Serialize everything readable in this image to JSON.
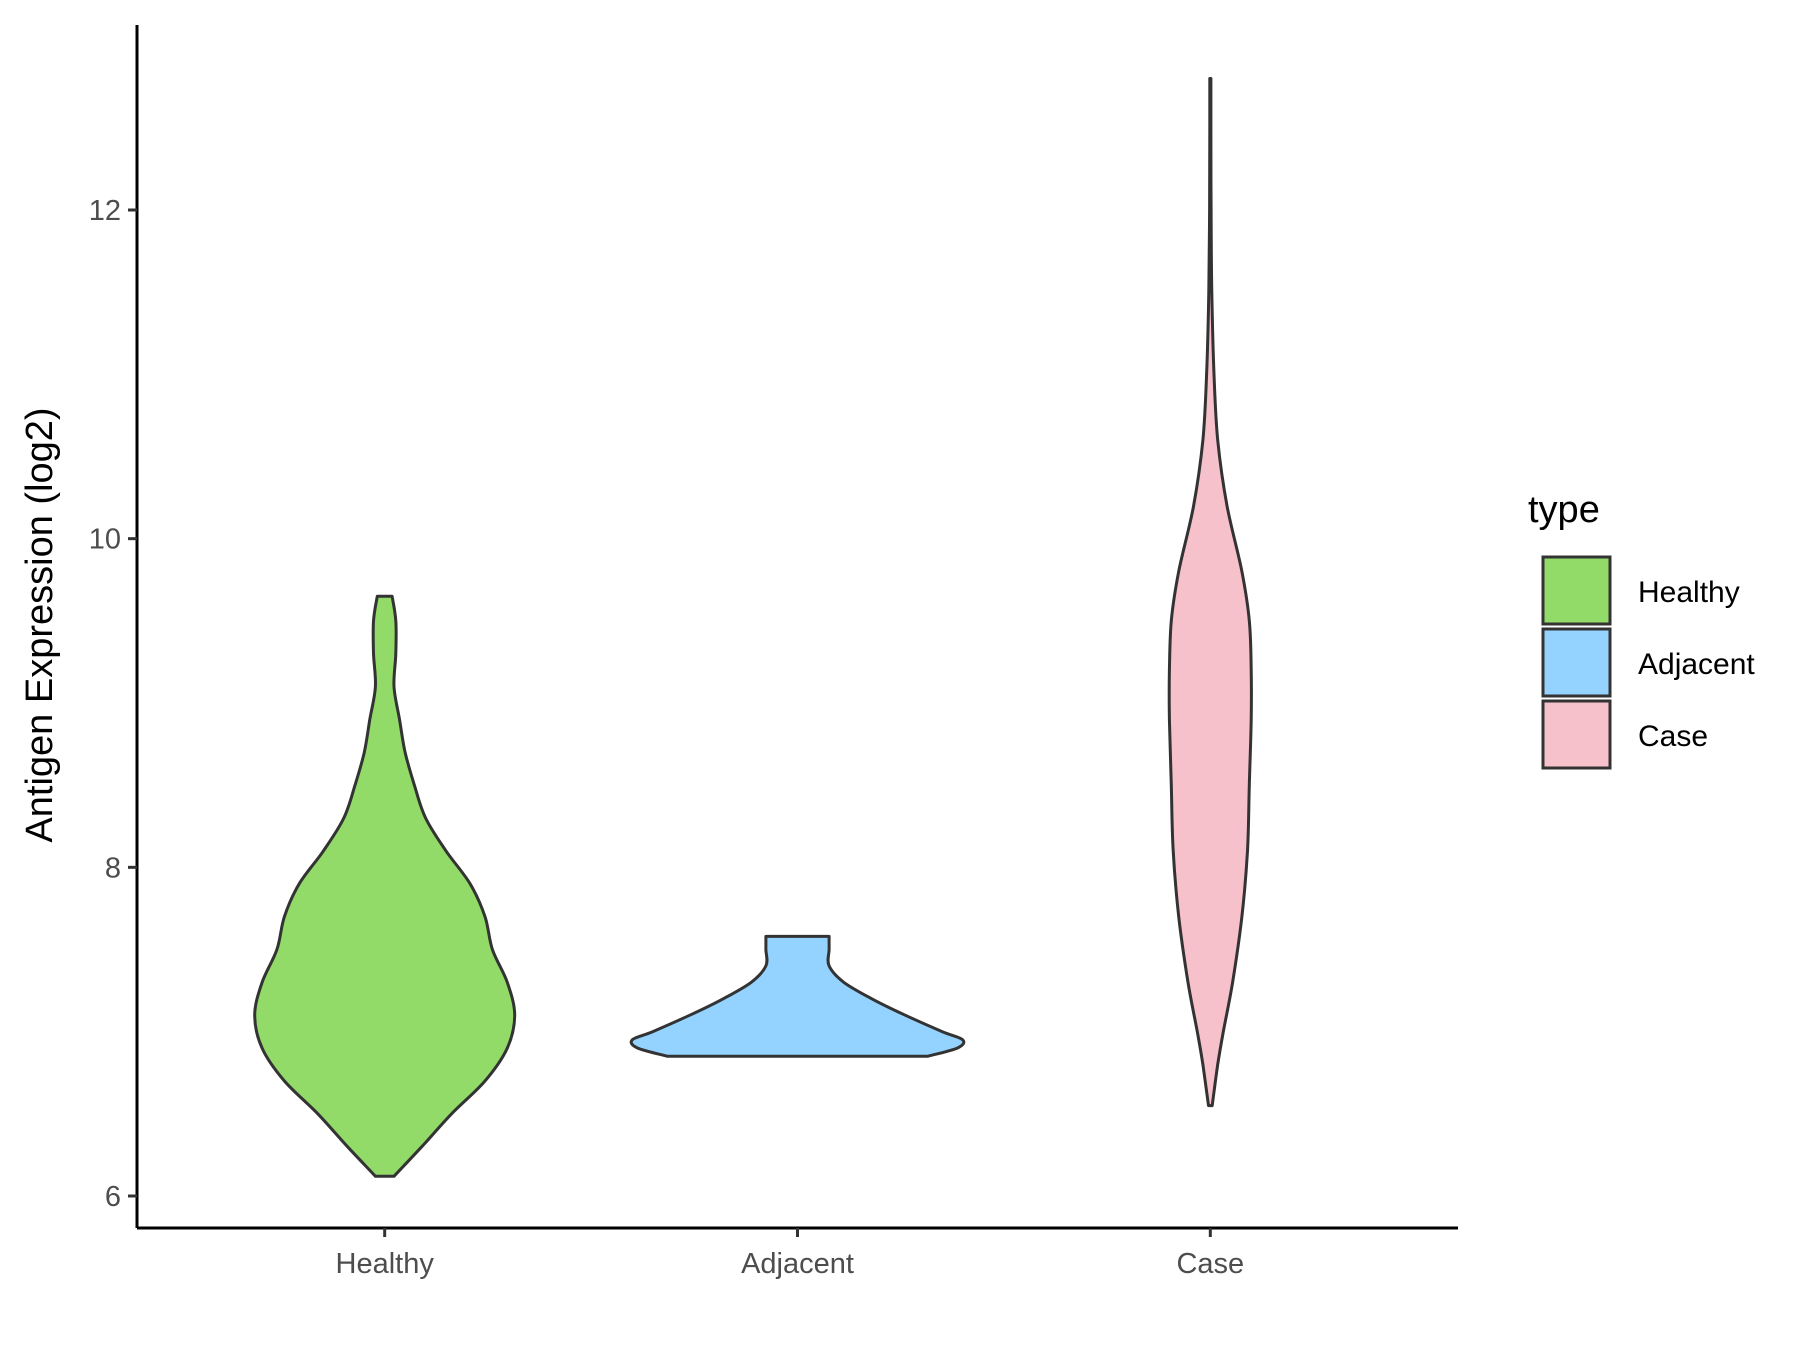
{
  "chart_data": {
    "type": "violin",
    "title": "",
    "xlabel": "",
    "ylabel": "Antigen Expression (log2)",
    "ylim": [
      5.8,
      13.2
    ],
    "yticks": [
      6,
      8,
      10,
      12
    ],
    "categories": [
      "Healthy",
      "Adjacent",
      "Case"
    ],
    "legend": {
      "title": "type",
      "placement": "right",
      "entries": [
        "Healthy",
        "Adjacent",
        "Case"
      ]
    },
    "grid": false,
    "series": [
      {
        "category": "Healthy",
        "color": "#93DB69",
        "min": 6.12,
        "max": 9.65,
        "profile": [
          [
            6.12,
            0.05
          ],
          [
            6.3,
            0.2
          ],
          [
            6.5,
            0.36
          ],
          [
            6.7,
            0.54
          ],
          [
            6.9,
            0.66
          ],
          [
            7.1,
            0.7
          ],
          [
            7.3,
            0.66
          ],
          [
            7.5,
            0.58
          ],
          [
            7.7,
            0.54
          ],
          [
            7.9,
            0.46
          ],
          [
            8.1,
            0.33
          ],
          [
            8.3,
            0.22
          ],
          [
            8.5,
            0.16
          ],
          [
            8.7,
            0.11
          ],
          [
            8.9,
            0.08
          ],
          [
            9.1,
            0.05
          ],
          [
            9.3,
            0.06
          ],
          [
            9.5,
            0.06
          ],
          [
            9.65,
            0.04
          ]
        ]
      },
      {
        "category": "Adjacent",
        "color": "#94D3FF",
        "min": 6.85,
        "max": 7.58,
        "profile": [
          [
            6.85,
            0.7
          ],
          [
            6.9,
            0.86
          ],
          [
            6.95,
            0.89
          ],
          [
            7.0,
            0.78
          ],
          [
            7.1,
            0.58
          ],
          [
            7.2,
            0.4
          ],
          [
            7.3,
            0.25
          ],
          [
            7.4,
            0.17
          ],
          [
            7.5,
            0.17
          ],
          [
            7.58,
            0.17
          ]
        ]
      },
      {
        "category": "Case",
        "color": "#F7C1CC",
        "min": 6.55,
        "max": 12.8,
        "profile": [
          [
            6.55,
            0.01
          ],
          [
            6.8,
            0.04
          ],
          [
            7.0,
            0.07
          ],
          [
            7.3,
            0.12
          ],
          [
            7.7,
            0.17
          ],
          [
            8.1,
            0.2
          ],
          [
            8.5,
            0.21
          ],
          [
            8.9,
            0.22
          ],
          [
            9.2,
            0.22
          ],
          [
            9.5,
            0.21
          ],
          [
            9.8,
            0.17
          ],
          [
            10.2,
            0.09
          ],
          [
            10.6,
            0.04
          ],
          [
            11.0,
            0.02
          ],
          [
            11.5,
            0.008
          ],
          [
            12.0,
            0.004
          ],
          [
            12.5,
            0.003
          ],
          [
            12.8,
            0.003
          ]
        ]
      }
    ]
  }
}
